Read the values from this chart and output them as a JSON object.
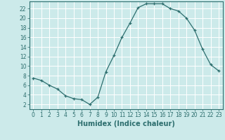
{
  "x": [
    0,
    1,
    2,
    3,
    4,
    5,
    6,
    7,
    8,
    9,
    10,
    11,
    12,
    13,
    14,
    15,
    16,
    17,
    18,
    19,
    20,
    21,
    22,
    23
  ],
  "y": [
    7.5,
    7.0,
    6.0,
    5.2,
    3.8,
    3.2,
    3.0,
    2.0,
    3.5,
    8.8,
    12.2,
    16.0,
    19.0,
    22.2,
    23.0,
    23.0,
    23.0,
    22.0,
    21.5,
    20.0,
    17.5,
    13.5,
    10.3,
    9.0
  ],
  "line_color": "#2d6e6e",
  "marker": "+",
  "marker_size": 3,
  "background_color": "#cceaea",
  "grid_color": "#ffffff",
  "xlabel": "Humidex (Indice chaleur)",
  "xlim": [
    -0.5,
    23.5
  ],
  "ylim": [
    1,
    23.5
  ],
  "yticks": [
    2,
    4,
    6,
    8,
    10,
    12,
    14,
    16,
    18,
    20,
    22
  ],
  "xticks": [
    0,
    1,
    2,
    3,
    4,
    5,
    6,
    7,
    8,
    9,
    10,
    11,
    12,
    13,
    14,
    15,
    16,
    17,
    18,
    19,
    20,
    21,
    22,
    23
  ],
  "tick_label_fontsize": 5.5,
  "xlabel_fontsize": 7.0
}
